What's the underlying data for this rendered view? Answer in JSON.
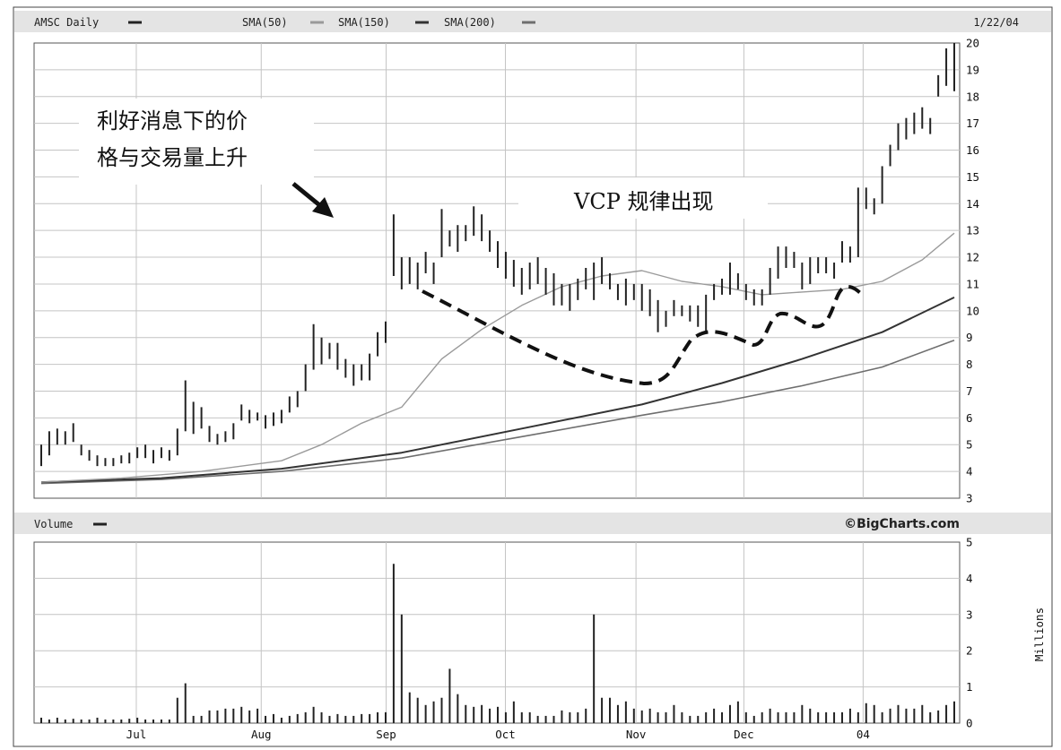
{
  "header": {
    "symbol_label": "AMSC Daily",
    "sma50_label": "SMA(50)",
    "sma150_label": "SMA(150)",
    "sma200_label": "SMA(200)",
    "date": "1/22/04"
  },
  "volume_header": {
    "label": "Volume",
    "brand": "©BigCharts.com",
    "units": "Millions"
  },
  "annotations": {
    "news_line1": "利好消息下的价",
    "news_line2": "格与交易量上升",
    "vcp": "VCP 规律出现"
  },
  "colors": {
    "frame": "#444444",
    "header_bg": "#e4e4e4",
    "grid": "#c4c4c4",
    "price_bar": "#222222",
    "sma50": "#9a9a9a",
    "sma150": "#333333",
    "sma200": "#6e6e6e",
    "volume_bar": "#222222"
  },
  "icons": {
    "vcp_pattern": "dashed-curve",
    "news_arrow": "arrow-icon"
  },
  "chart_data": [
    {
      "type": "ohlc-line",
      "ylim": [
        3,
        20
      ],
      "yticks": [
        3,
        4,
        5,
        6,
        7,
        8,
        9,
        10,
        11,
        12,
        13,
        14,
        15,
        16,
        17,
        18,
        19,
        20
      ],
      "x_ticks": [
        "Jul",
        "Aug",
        "Sep",
        "Oct",
        "Nov",
        "Dec",
        "04"
      ],
      "x_tick_positions": [
        18,
        40,
        62,
        83,
        106,
        125,
        146
      ],
      "x_range": [
        0,
        163
      ],
      "grid": true,
      "series_prices": [
        [
          0,
          4.2,
          5.0
        ],
        [
          1,
          4.6,
          5.5
        ],
        [
          2,
          5.0,
          5.6
        ],
        [
          3,
          5.0,
          5.5
        ],
        [
          4,
          5.1,
          5.8
        ],
        [
          5,
          4.6,
          5.0
        ],
        [
          6,
          4.4,
          4.8
        ],
        [
          7,
          4.2,
          4.6
        ],
        [
          8,
          4.2,
          4.5
        ],
        [
          9,
          4.2,
          4.5
        ],
        [
          10,
          4.3,
          4.6
        ],
        [
          11,
          4.3,
          4.7
        ],
        [
          12,
          4.5,
          4.9
        ],
        [
          13,
          4.5,
          5.0
        ],
        [
          14,
          4.3,
          4.8
        ],
        [
          15,
          4.5,
          4.9
        ],
        [
          16,
          4.4,
          4.8
        ],
        [
          17,
          4.6,
          5.6
        ],
        [
          18,
          5.5,
          7.4
        ],
        [
          19,
          5.4,
          6.6
        ],
        [
          20,
          5.6,
          6.4
        ],
        [
          21,
          5.1,
          5.7
        ],
        [
          22,
          5.0,
          5.4
        ],
        [
          23,
          5.1,
          5.5
        ],
        [
          24,
          5.2,
          5.8
        ],
        [
          25,
          5.9,
          6.5
        ],
        [
          26,
          5.8,
          6.3
        ],
        [
          27,
          5.9,
          6.2
        ],
        [
          28,
          5.6,
          6.1
        ],
        [
          29,
          5.7,
          6.2
        ],
        [
          30,
          5.8,
          6.3
        ],
        [
          31,
          6.2,
          6.8
        ],
        [
          32,
          6.4,
          7.0
        ],
        [
          33,
          7.0,
          8.0
        ],
        [
          34,
          7.8,
          9.5
        ],
        [
          35,
          8.0,
          9.0
        ],
        [
          36,
          8.2,
          8.8
        ],
        [
          37,
          7.8,
          8.8
        ],
        [
          38,
          7.5,
          8.2
        ],
        [
          39,
          7.2,
          8.0
        ],
        [
          40,
          7.4,
          8.0
        ],
        [
          41,
          7.4,
          8.4
        ],
        [
          42,
          8.3,
          9.2
        ],
        [
          43,
          8.8,
          9.6
        ],
        [
          44,
          11.3,
          13.6
        ],
        [
          45,
          10.8,
          12.0
        ],
        [
          46,
          11.0,
          12.0
        ],
        [
          47,
          10.8,
          11.8
        ],
        [
          48,
          11.4,
          12.2
        ],
        [
          49,
          11.0,
          11.8
        ],
        [
          50,
          12.0,
          13.8
        ],
        [
          51,
          12.4,
          13.0
        ],
        [
          52,
          12.2,
          13.2
        ],
        [
          53,
          12.6,
          13.2
        ],
        [
          54,
          12.8,
          13.9
        ],
        [
          55,
          12.6,
          13.6
        ],
        [
          56,
          12.2,
          13.0
        ],
        [
          57,
          11.6,
          12.6
        ],
        [
          58,
          11.2,
          12.2
        ],
        [
          59,
          10.9,
          11.9
        ],
        [
          60,
          10.6,
          11.6
        ],
        [
          61,
          10.8,
          11.8
        ],
        [
          62,
          11.0,
          12.0
        ],
        [
          63,
          10.6,
          11.6
        ],
        [
          64,
          10.2,
          11.4
        ],
        [
          65,
          10.2,
          11.0
        ],
        [
          66,
          10.0,
          11.0
        ],
        [
          67,
          10.4,
          11.2
        ],
        [
          68,
          10.8,
          11.6
        ],
        [
          69,
          10.4,
          11.8
        ],
        [
          70,
          11.0,
          12.0
        ],
        [
          71,
          10.8,
          11.4
        ],
        [
          72,
          10.4,
          11.0
        ],
        [
          73,
          10.2,
          11.2
        ],
        [
          74,
          10.4,
          11.0
        ],
        [
          75,
          10.0,
          11.0
        ],
        [
          76,
          9.8,
          10.8
        ],
        [
          77,
          9.2,
          10.4
        ],
        [
          78,
          9.4,
          10.0
        ],
        [
          79,
          9.8,
          10.4
        ],
        [
          80,
          9.8,
          10.2
        ],
        [
          81,
          9.6,
          10.2
        ],
        [
          82,
          9.4,
          10.2
        ],
        [
          83,
          9.2,
          10.6
        ],
        [
          84,
          10.4,
          11.0
        ],
        [
          85,
          10.6,
          11.2
        ],
        [
          86,
          10.6,
          11.8
        ],
        [
          87,
          10.8,
          11.4
        ],
        [
          88,
          10.4,
          11.0
        ],
        [
          89,
          10.2,
          10.8
        ],
        [
          90,
          10.2,
          10.8
        ],
        [
          91,
          10.6,
          11.6
        ],
        [
          92,
          11.2,
          12.4
        ],
        [
          93,
          11.6,
          12.4
        ],
        [
          94,
          11.6,
          12.2
        ],
        [
          95,
          10.8,
          11.8
        ],
        [
          96,
          11.0,
          12.0
        ],
        [
          97,
          11.4,
          12.0
        ],
        [
          98,
          11.4,
          12.0
        ],
        [
          99,
          11.2,
          11.8
        ],
        [
          100,
          11.8,
          12.6
        ],
        [
          101,
          11.8,
          12.4
        ],
        [
          102,
          12.0,
          14.6
        ],
        [
          103,
          13.8,
          14.6
        ],
        [
          104,
          13.6,
          14.2
        ],
        [
          105,
          14.0,
          15.4
        ],
        [
          106,
          15.4,
          16.2
        ],
        [
          107,
          16.0,
          17.0
        ],
        [
          108,
          16.4,
          17.2
        ],
        [
          109,
          16.6,
          17.4
        ],
        [
          110,
          16.8,
          17.6
        ],
        [
          111,
          16.6,
          17.2
        ],
        [
          112,
          18.0,
          18.8
        ],
        [
          113,
          18.4,
          19.8
        ],
        [
          114,
          18.2,
          20.0
        ]
      ],
      "sma50": [
        [
          0,
          3.6
        ],
        [
          10,
          3.75
        ],
        [
          20,
          4.0
        ],
        [
          30,
          4.4
        ],
        [
          35,
          5.0
        ],
        [
          40,
          5.8
        ],
        [
          45,
          6.4
        ],
        [
          50,
          8.2
        ],
        [
          55,
          9.3
        ],
        [
          60,
          10.2
        ],
        [
          65,
          10.9
        ],
        [
          70,
          11.3
        ],
        [
          75,
          11.5
        ],
        [
          80,
          11.1
        ],
        [
          85,
          10.9
        ],
        [
          90,
          10.6
        ],
        [
          95,
          10.7
        ],
        [
          100,
          10.8
        ],
        [
          105,
          11.1
        ],
        [
          110,
          11.9
        ],
        [
          114,
          12.9
        ]
      ],
      "sma150": [
        [
          0,
          3.6
        ],
        [
          15,
          3.75
        ],
        [
          30,
          4.1
        ],
        [
          45,
          4.7
        ],
        [
          60,
          5.6
        ],
        [
          75,
          6.5
        ],
        [
          85,
          7.3
        ],
        [
          95,
          8.2
        ],
        [
          105,
          9.2
        ],
        [
          114,
          10.5
        ]
      ],
      "sma200": [
        [
          0,
          3.55
        ],
        [
          15,
          3.7
        ],
        [
          30,
          4.0
        ],
        [
          45,
          4.5
        ],
        [
          60,
          5.3
        ],
        [
          75,
          6.1
        ],
        [
          85,
          6.6
        ],
        [
          95,
          7.2
        ],
        [
          105,
          7.9
        ],
        [
          114,
          8.9
        ]
      ]
    },
    {
      "type": "bar",
      "ylabel": "Millions",
      "ylim": [
        0,
        5
      ],
      "yticks": [
        0,
        1,
        2,
        3,
        4,
        5
      ],
      "volumes": [
        0.15,
        0.1,
        0.15,
        0.1,
        0.12,
        0.1,
        0.1,
        0.15,
        0.1,
        0.1,
        0.1,
        0.12,
        0.15,
        0.1,
        0.1,
        0.1,
        0.1,
        0.7,
        1.1,
        0.2,
        0.2,
        0.35,
        0.35,
        0.4,
        0.4,
        0.45,
        0.35,
        0.4,
        0.2,
        0.25,
        0.15,
        0.2,
        0.25,
        0.3,
        0.45,
        0.3,
        0.2,
        0.25,
        0.2,
        0.2,
        0.25,
        0.25,
        0.3,
        0.3,
        4.4,
        3.0,
        0.85,
        0.7,
        0.5,
        0.6,
        0.7,
        1.5,
        0.8,
        0.5,
        0.45,
        0.5,
        0.4,
        0.45,
        0.3,
        0.6,
        0.3,
        0.3,
        0.2,
        0.2,
        0.2,
        0.35,
        0.3,
        0.3,
        0.4,
        3.0,
        0.7,
        0.7,
        0.5,
        0.6,
        0.4,
        0.35,
        0.4,
        0.3,
        0.3,
        0.5,
        0.3,
        0.2,
        0.2,
        0.3,
        0.4,
        0.3,
        0.5,
        0.6,
        0.3,
        0.2,
        0.3,
        0.4,
        0.3,
        0.3,
        0.3,
        0.5,
        0.4,
        0.3,
        0.3,
        0.3,
        0.3,
        0.4,
        0.3,
        0.55,
        0.5,
        0.3,
        0.4,
        0.5,
        0.4,
        0.4,
        0.5,
        0.3,
        0.35,
        0.5,
        0.6
      ]
    }
  ]
}
